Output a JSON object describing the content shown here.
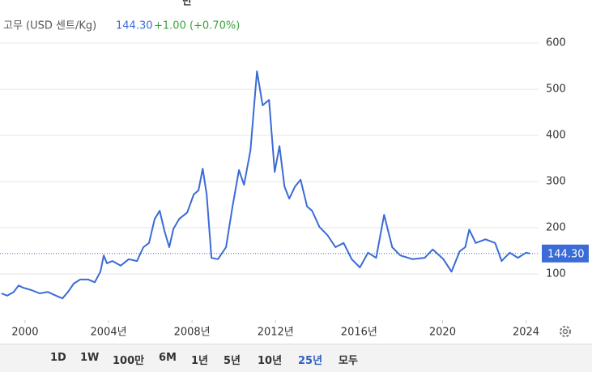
{
  "chart_data": {
    "type": "line",
    "header_fragment": "만",
    "series": [
      {
        "name": "고무 (USD 센트/Kg)",
        "color": "#3a6bd6",
        "x": [
          1998.87,
          1999.15,
          1999.46,
          1999.69,
          1999.92,
          2000.31,
          2000.7,
          2001.09,
          2001.48,
          2001.79,
          2002.06,
          2002.33,
          2002.64,
          2003.03,
          2003.34,
          2003.61,
          2003.77,
          2003.92,
          2004.19,
          2004.58,
          2004.97,
          2005.36,
          2005.67,
          2005.94,
          2006.21,
          2006.45,
          2006.68,
          2006.91,
          2007.11,
          2007.38,
          2007.77,
          2008.08,
          2008.31,
          2008.51,
          2008.7,
          2008.93,
          2009.24,
          2009.63,
          2009.94,
          2010.25,
          2010.49,
          2010.8,
          2011.11,
          2011.38,
          2011.69,
          2011.96,
          2012.19,
          2012.43,
          2012.66,
          2012.93,
          2013.2,
          2013.51,
          2013.75,
          2014.1,
          2014.49,
          2014.87,
          2015.26,
          2015.65,
          2016.04,
          2016.43,
          2016.82,
          2017.2,
          2017.59,
          2017.98,
          2018.56,
          2019.15,
          2019.53,
          2020.04,
          2020.43,
          2020.82,
          2021.09,
          2021.28,
          2021.59,
          2022.06,
          2022.52,
          2022.83,
          2023.22,
          2023.61,
          2024.0,
          2024.19
        ],
        "values": [
          58,
          53,
          61,
          75,
          70,
          65,
          58,
          61,
          53,
          47,
          61,
          79,
          88,
          88,
          82,
          105,
          140,
          123,
          128,
          118,
          132,
          128,
          158,
          167,
          219,
          237,
          193,
          158,
          198,
          219,
          233,
          272,
          281,
          328,
          272,
          135,
          132,
          158,
          246,
          325,
          293,
          368,
          539,
          465,
          477,
          321,
          377,
          289,
          263,
          289,
          304,
          246,
          237,
          202,
          184,
          158,
          167,
          132,
          114,
          146,
          135,
          228,
          158,
          140,
          132,
          135,
          153,
          132,
          105,
          149,
          158,
          196,
          167,
          175,
          167,
          128,
          146,
          135,
          146,
          144.3
        ]
      }
    ],
    "price": {
      "value": 144.3,
      "label": "144.30",
      "change": "+1.00 (+0.70%)"
    },
    "xlim": [
      1998.8,
      2024.6
    ],
    "xticks": [
      2000,
      {
        "value": 2004,
        "label": "2004년"
      },
      {
        "value": 2008,
        "label": "2008년"
      },
      {
        "value": 2012,
        "label": "2012년"
      },
      {
        "value": 2016,
        "label": "2016년"
      },
      2020,
      2024
    ],
    "ylim": [
      0,
      623
    ],
    "yticks": [
      100,
      200,
      300,
      400,
      500,
      600
    ],
    "grid": true,
    "ranges": [
      "1D",
      "1W",
      "100만",
      "6M",
      "1년",
      "5년",
      "10년",
      "25년",
      "모두"
    ],
    "active_range": 7
  }
}
